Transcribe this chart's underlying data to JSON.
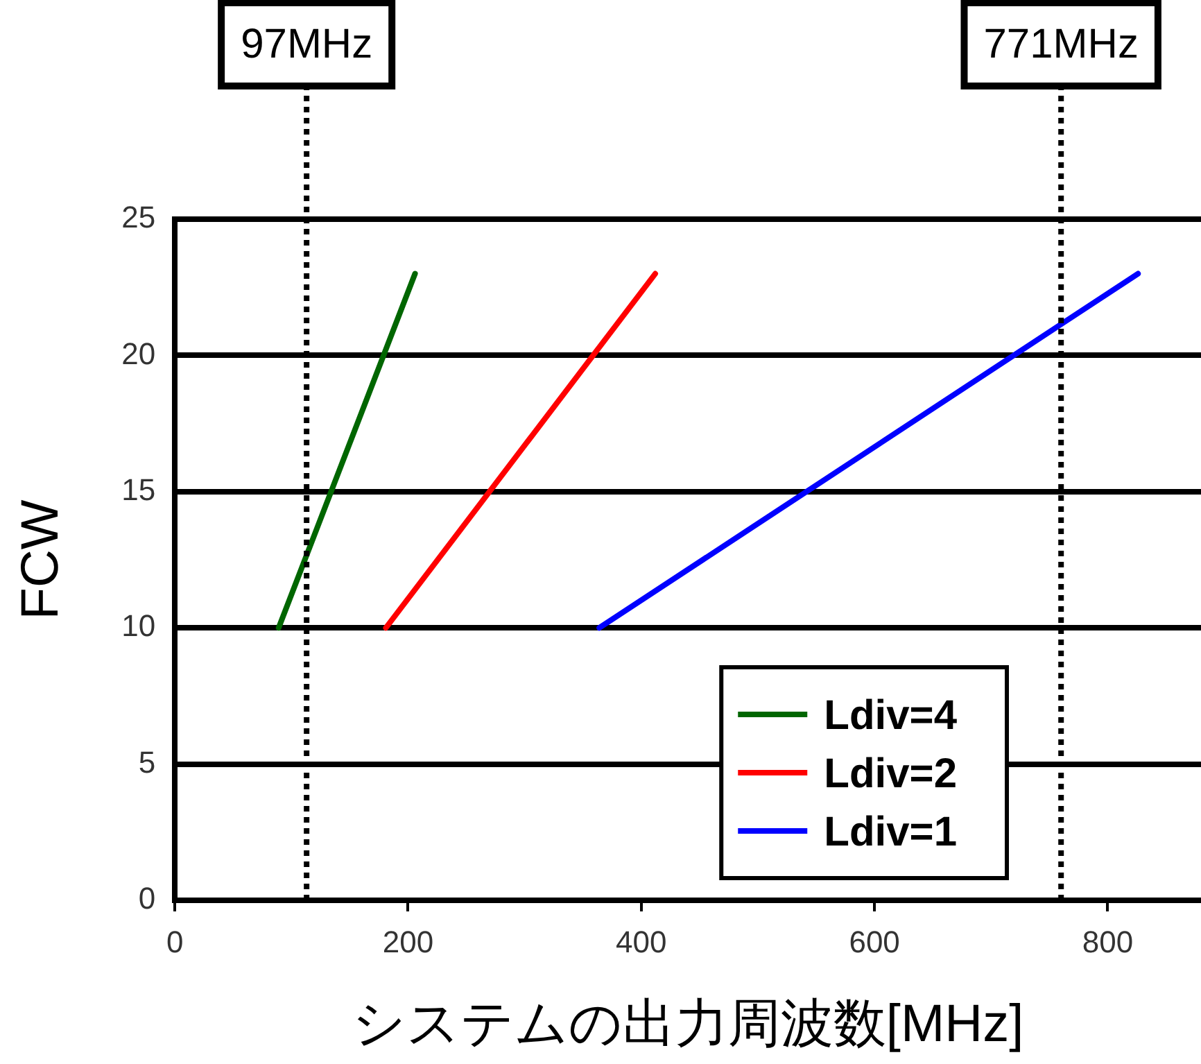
{
  "chart_data": {
    "type": "line",
    "xlabel": "システムの出力周波数[MHz]",
    "ylabel": "FCW",
    "series": [
      {
        "name": "Ldiv=4",
        "color": "#006600",
        "x": [
          89,
          206
        ],
        "values": [
          10,
          23
        ]
      },
      {
        "name": "Ldiv=2",
        "color": "#ff0000",
        "x": [
          181,
          412
        ],
        "values": [
          10,
          23
        ]
      },
      {
        "name": "Ldiv=1",
        "color": "#0000ff",
        "x": [
          364,
          826
        ],
        "values": [
          10,
          23
        ]
      }
    ],
    "xlim": [
      0,
      880
    ],
    "xticks": [
      0,
      200,
      400,
      600,
      800
    ],
    "ylim": [
      0,
      25
    ],
    "yticks": [
      0,
      5,
      10,
      15,
      20,
      25
    ],
    "grid": "y",
    "legend": "bottom right",
    "marker": "none",
    "line_style": "solid",
    "ref_lines": [
      {
        "axis": "x",
        "value": 113,
        "label": "97MHz",
        "color": "#000000",
        "line_style": "dotted"
      },
      {
        "axis": "x",
        "value": 760,
        "label": "771MHz",
        "color": "#000000",
        "line_style": "dotted"
      }
    ]
  }
}
